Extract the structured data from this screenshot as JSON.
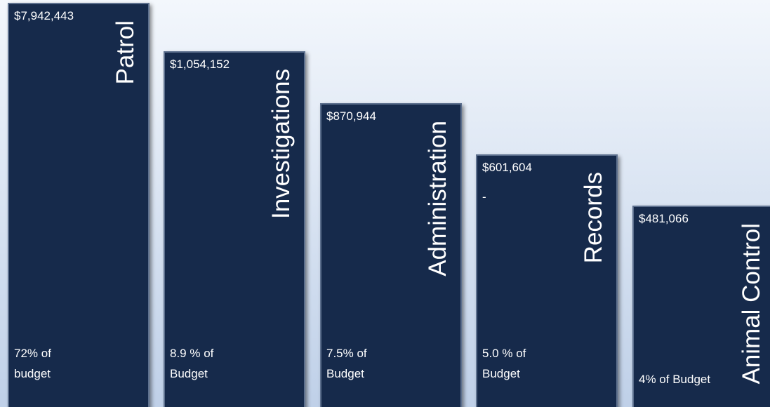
{
  "bars": [
    {
      "label": "Patrol",
      "amount": "$7,942,443",
      "share": [
        "72% of",
        "budget"
      ]
    },
    {
      "label": "Investigations",
      "amount": "$1,054,152",
      "share": [
        "8.9 % of",
        "Budget"
      ]
    },
    {
      "label": "Administration",
      "amount": "$870,944",
      "share": [
        "7.5% of",
        "Budget"
      ]
    },
    {
      "label": "Records",
      "amount": "$601,604",
      "note": "-",
      "share": [
        "5.0 % of",
        "Budget"
      ]
    },
    {
      "label": "Animal Control",
      "amount": "$481,066",
      "share": [
        "4% of Budget"
      ]
    }
  ]
}
